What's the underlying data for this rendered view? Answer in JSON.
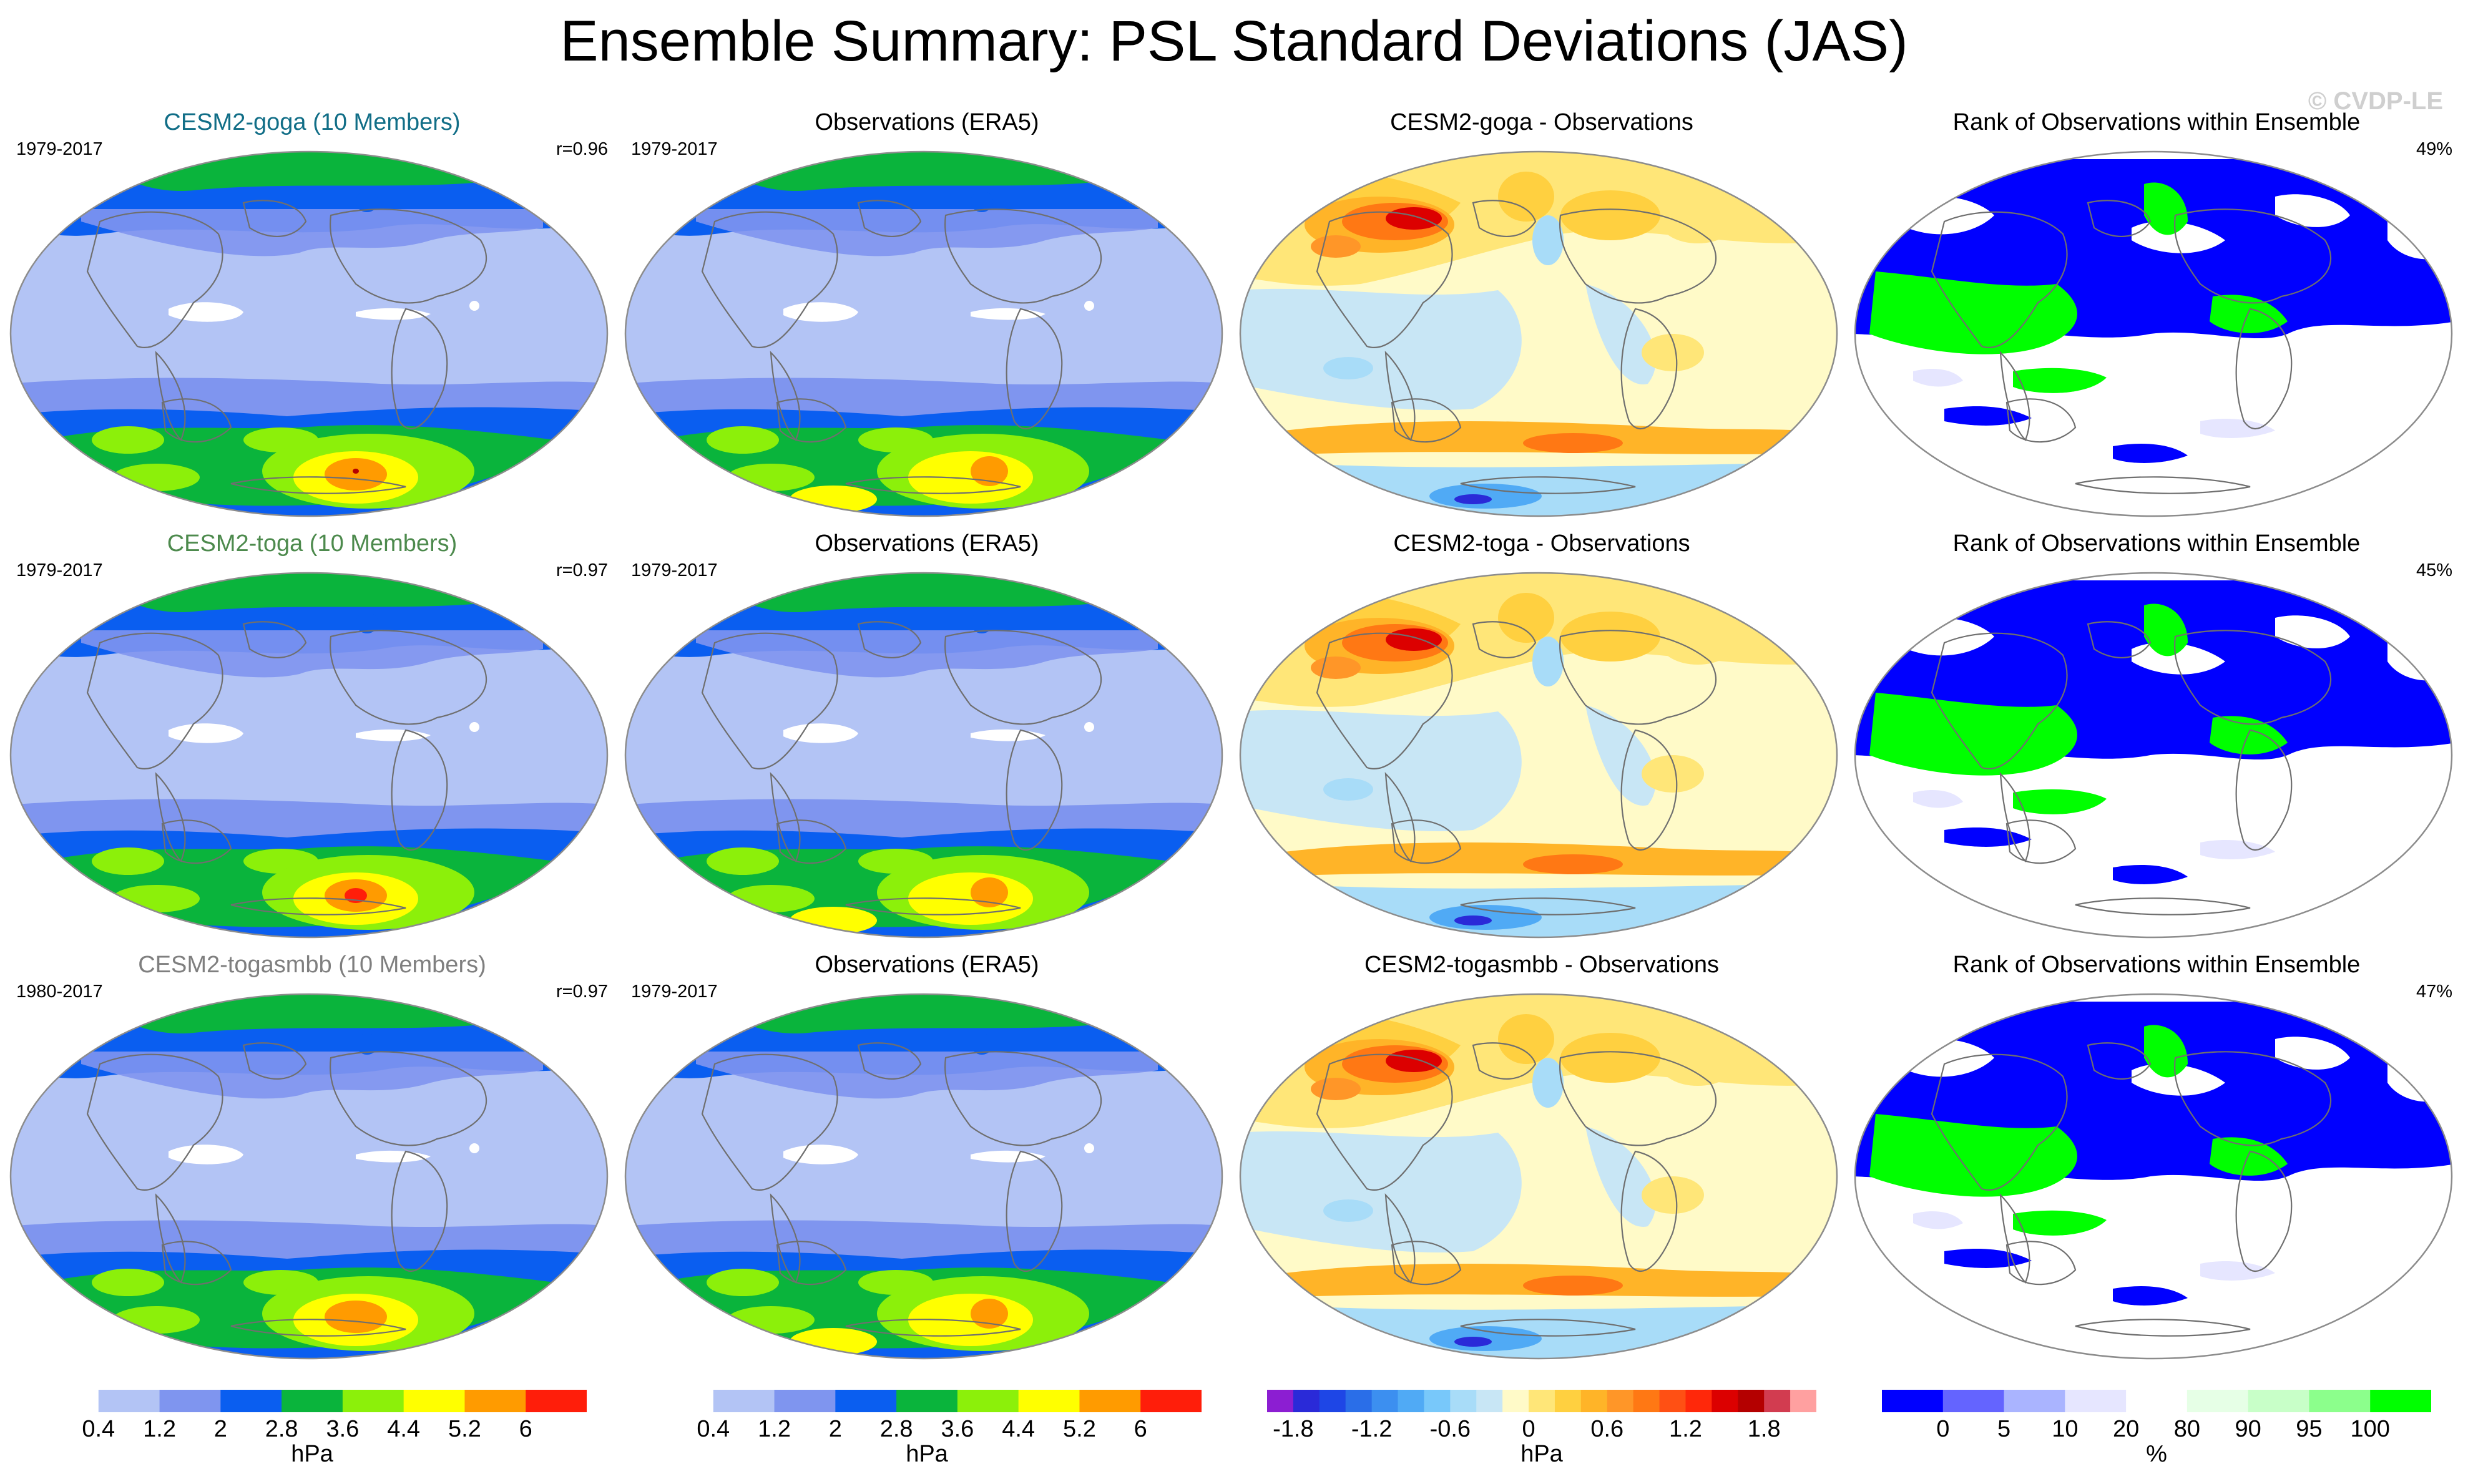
{
  "header": {
    "title": "Ensemble Summary: PSL Standard Deviations (JAS)",
    "watermark": "© CVDP-LE"
  },
  "colors": {
    "model_title_goga": "#116e87",
    "model_title_toga": "#4d8a4d",
    "model_title_togasmbb": "#7f7f7f",
    "ocean_base": "#b3c4f5",
    "coast": "#6f6f6f"
  },
  "rows": [
    {
      "model": {
        "title": "CESM2-goga (10 Members)",
        "years": "1979-2017",
        "r": "r=0.96",
        "color_key": "model_title_goga"
      },
      "obs": {
        "title": "Observations (ERA5)",
        "years": "1979-2017"
      },
      "diff": {
        "title": "CESM2-goga - Observations"
      },
      "rank": {
        "title": "Rank of Observations within Ensemble",
        "pct": "49%"
      }
    },
    {
      "model": {
        "title": "CESM2-toga (10 Members)",
        "years": "1979-2017",
        "r": "r=0.97",
        "color_key": "model_title_toga"
      },
      "obs": {
        "title": "Observations (ERA5)",
        "years": "1979-2017"
      },
      "diff": {
        "title": "CESM2-toga - Observations"
      },
      "rank": {
        "title": "Rank of Observations within Ensemble",
        "pct": "45%"
      }
    },
    {
      "model": {
        "title": "CESM2-togasmbb (10 Members)",
        "years": "1980-2017",
        "r": "r=0.97",
        "color_key": "model_title_togasmbb"
      },
      "obs": {
        "title": "Observations (ERA5)",
        "years": "1979-2017"
      },
      "diff": {
        "title": "CESM2-togasmbb - Observations"
      },
      "rank": {
        "title": "Rank of Observations within Ensemble",
        "pct": "47%"
      }
    }
  ],
  "colorbars": [
    {
      "name": "model-std-colorbar",
      "unit": "hPa",
      "colors": [
        "#ffffff",
        "#b3c4f5",
        "#7f95ef",
        "#0a5ef0",
        "#0ab43c",
        "#8cf00a",
        "#ffff00",
        "#ff9b00",
        "#ff1e0a"
      ],
      "ticks": [
        "0.4",
        "1.2",
        "2",
        "2.8",
        "3.6",
        "4.4",
        "5.2",
        "6"
      ]
    },
    {
      "name": "obs-std-colorbar",
      "unit": "hPa",
      "colors": [
        "#ffffff",
        "#b3c4f5",
        "#7f95ef",
        "#0a5ef0",
        "#0ab43c",
        "#8cf00a",
        "#ffff00",
        "#ff9b00",
        "#ff1e0a"
      ],
      "ticks": [
        "0.4",
        "1.2",
        "2",
        "2.8",
        "3.6",
        "4.4",
        "5.2",
        "6"
      ]
    },
    {
      "name": "diff-colorbar",
      "unit": "hPa",
      "colors": [
        "#8c1ed2",
        "#2a2ad8",
        "#1e46e6",
        "#2a6ee8",
        "#3c8ff0",
        "#50aaf5",
        "#78c8fa",
        "#a8dcf8",
        "#c8e6f5",
        "#fffac8",
        "#ffe678",
        "#ffd040",
        "#ffb428",
        "#ff9628",
        "#ff7814",
        "#ff5014",
        "#ff280a",
        "#dc0000",
        "#b40000",
        "#d23c50",
        "#ffa0a0"
      ],
      "ticks": [
        "-1.8",
        "-1.2",
        "-0.6",
        "0",
        "0.6",
        "1.2",
        "1.8"
      ]
    },
    {
      "name": "rank-colorbar",
      "unit": "%",
      "colors": [
        "#0000ff",
        "#6464ff",
        "#aab4ff",
        "#e6e6ff",
        "#ffffff",
        "#e6ffe6",
        "#c8ffc8",
        "#8cff8c",
        "#00ff00"
      ],
      "ticks": [
        "0",
        "5",
        "10",
        "20",
        "80",
        "90",
        "95",
        "100"
      ]
    }
  ]
}
